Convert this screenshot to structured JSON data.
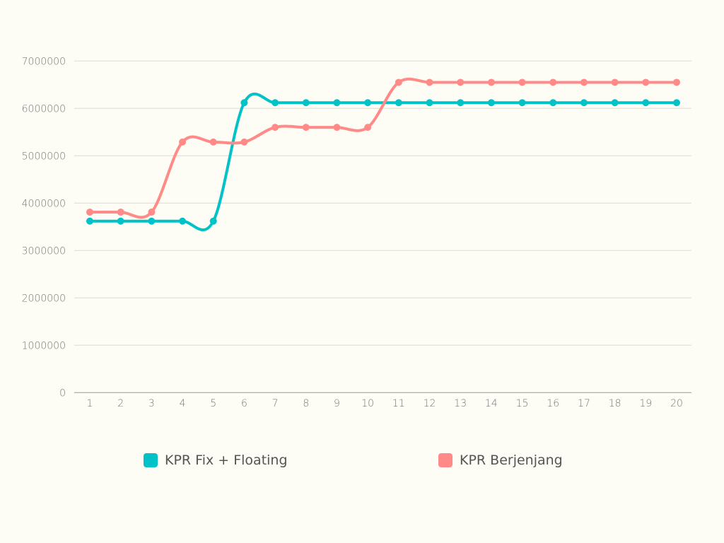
{
  "chart_data": {
    "type": "line",
    "title": "",
    "xlabel": "",
    "ylabel": "",
    "x": [
      1,
      2,
      3,
      4,
      5,
      6,
      7,
      8,
      9,
      10,
      11,
      12,
      13,
      14,
      15,
      16,
      17,
      18,
      19,
      20
    ],
    "ylim": [
      0,
      7000000
    ],
    "yticks": [
      0,
      1000000,
      2000000,
      3000000,
      4000000,
      5000000,
      6000000,
      7000000
    ],
    "grid": true,
    "legend_position": "bottom",
    "series": [
      {
        "name": "KPR Fix + Floating",
        "color": "#00c2c7",
        "values": [
          3620000,
          3620000,
          3620000,
          3620000,
          3620000,
          6120000,
          6120000,
          6120000,
          6120000,
          6120000,
          6120000,
          6120000,
          6120000,
          6120000,
          6120000,
          6120000,
          6120000,
          6120000,
          6120000,
          6120000
        ]
      },
      {
        "name": "KPR Berjenjang",
        "color": "#ff8a87",
        "values": [
          3810000,
          3810000,
          3810000,
          5290000,
          5290000,
          5290000,
          5600000,
          5600000,
          5600000,
          5600000,
          6550000,
          6550000,
          6550000,
          6550000,
          6550000,
          6550000,
          6550000,
          6550000,
          6550000,
          6550000
        ]
      }
    ]
  }
}
